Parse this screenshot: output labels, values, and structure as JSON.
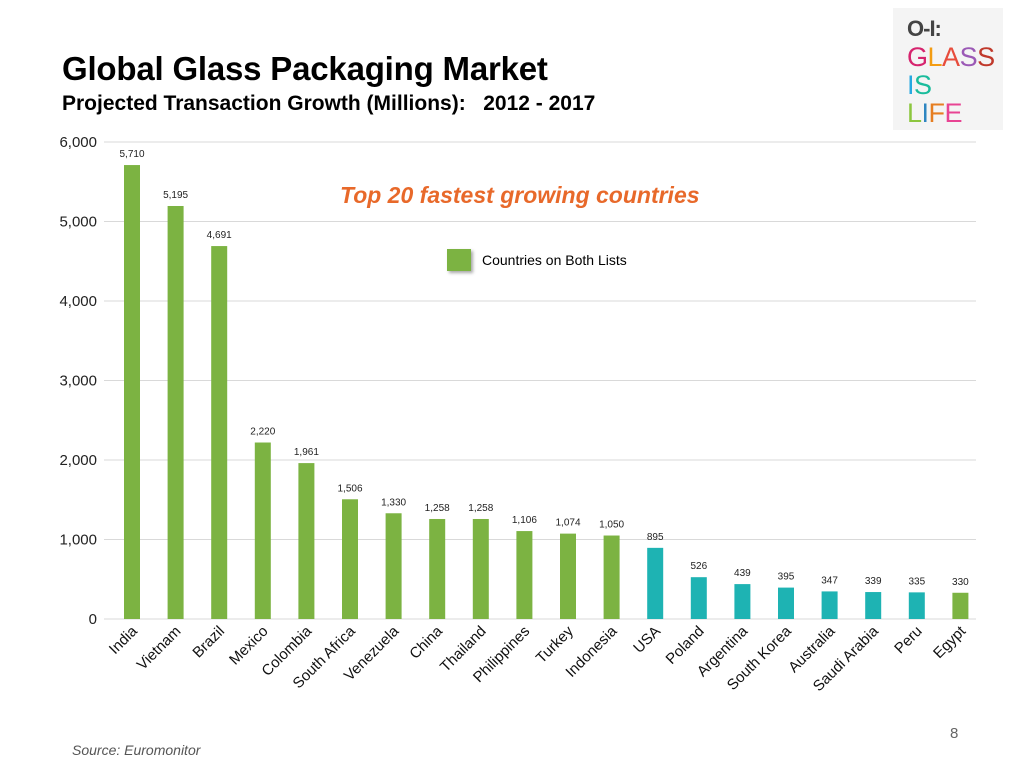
{
  "slide": {
    "title": "Global Glass Packaging Market",
    "subtitle": "Projected Transaction Growth (Millions):   2012 - 2017",
    "page_number": "8",
    "source": "Source: Euromonitor"
  },
  "logo": {
    "mark": "O-I:",
    "lines": [
      {
        "letters": [
          {
            "t": "G",
            "c": "#d6246e"
          },
          {
            "t": "L",
            "c": "#f39c12"
          },
          {
            "t": "A",
            "c": "#e74c3c"
          },
          {
            "t": "S",
            "c": "#9b59b6"
          },
          {
            "t": "S",
            "c": "#c0392b"
          }
        ]
      },
      {
        "letters": [
          {
            "t": "I",
            "c": "#27a9e1"
          },
          {
            "t": "S",
            "c": "#1abc9c"
          }
        ]
      },
      {
        "letters": [
          {
            "t": "L",
            "c": "#8cc63f"
          },
          {
            "t": "I",
            "c": "#2e86c1"
          },
          {
            "t": "F",
            "c": "#e67e22"
          },
          {
            "t": "E",
            "c": "#e84393"
          }
        ]
      }
    ]
  },
  "chart_data": {
    "type": "bar",
    "title": "Global Glass Packaging Market",
    "annotation": "Top 20 fastest growing countries",
    "legend": {
      "label": "Countries on Both Lists",
      "color": "#7cb342",
      "position": "top-center"
    },
    "colors": {
      "both_lists": "#7cb342",
      "other": "#1eb3b3"
    },
    "categories": [
      "India",
      "Vietnam",
      "Brazil",
      "Mexico",
      "Colombia",
      "South Africa",
      "Venezuela",
      "China",
      "Thailand",
      "Philippines",
      "Turkey",
      "Indonesia",
      "USA",
      "Poland",
      "Argentina",
      "South Korea",
      "Australia",
      "Saudi Arabia",
      "Peru",
      "Egypt"
    ],
    "values": [
      5710,
      5195,
      4691,
      2220,
      1961,
      1506,
      1330,
      1258,
      1258,
      1106,
      1074,
      1050,
      895,
      526,
      439,
      395,
      347,
      339,
      335,
      330
    ],
    "value_labels": [
      "5,710",
      "5,195",
      "4,691",
      "2,220",
      "1,961",
      "1,506",
      "1,330",
      "1,258",
      "1,258",
      "1,106",
      "1,074",
      "1,050",
      "895",
      "526",
      "439",
      "395",
      "347",
      "339",
      "335",
      "330"
    ],
    "on_both_lists": [
      true,
      true,
      true,
      true,
      true,
      true,
      true,
      true,
      true,
      true,
      true,
      true,
      false,
      false,
      false,
      false,
      false,
      false,
      false,
      true
    ],
    "ylim": [
      0,
      6000
    ],
    "yticks": [
      0,
      1000,
      2000,
      3000,
      4000,
      5000,
      6000
    ],
    "ytick_labels": [
      "0",
      "1,000",
      "2,000",
      "3,000",
      "4,000",
      "5,000",
      "6,000"
    ],
    "xlabel": "",
    "ylabel": "",
    "grid": true
  }
}
